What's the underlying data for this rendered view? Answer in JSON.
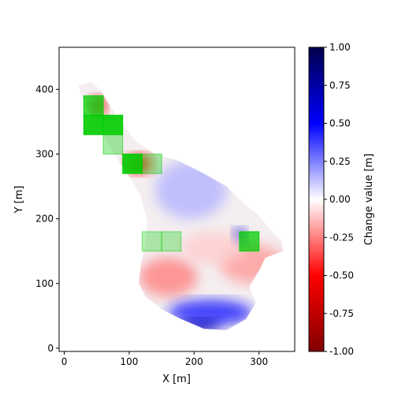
{
  "chart_data": {
    "type": "heatmap",
    "xlabel": "X [m]",
    "ylabel": "Y [m]",
    "xlim": [
      -8,
      355
    ],
    "ylim": [
      -5,
      465
    ],
    "xticks": [
      0,
      100,
      200,
      300
    ],
    "yticks": [
      0,
      100,
      200,
      300,
      400
    ],
    "colorbar": {
      "label": "Change value [m]",
      "range": [
        -1.0,
        1.0
      ],
      "ticks": [
        "-1.00",
        "-0.75",
        "-0.50",
        "-0.25",
        "0.00",
        "0.25",
        "0.50",
        "0.75",
        "1.00"
      ],
      "colormap": "seismic_r",
      "stops": [
        "#800000",
        "#ff0000",
        "#ffffff",
        "#0000ff",
        "#00004d"
      ]
    },
    "surface_outline": [
      [
        22,
        405
      ],
      [
        40,
        412
      ],
      [
        55,
        400
      ],
      [
        70,
        375
      ],
      [
        90,
        345
      ],
      [
        110,
        320
      ],
      [
        140,
        300
      ],
      [
        175,
        290
      ],
      [
        215,
        270
      ],
      [
        250,
        250
      ],
      [
        275,
        225
      ],
      [
        300,
        205
      ],
      [
        320,
        180
      ],
      [
        335,
        165
      ],
      [
        338,
        150
      ],
      [
        310,
        140
      ],
      [
        300,
        120
      ],
      [
        285,
        95
      ],
      [
        295,
        70
      ],
      [
        280,
        45
      ],
      [
        250,
        28
      ],
      [
        215,
        30
      ],
      [
        180,
        45
      ],
      [
        150,
        60
      ],
      [
        125,
        80
      ],
      [
        115,
        100
      ],
      [
        118,
        130
      ],
      [
        125,
        160
      ],
      [
        128,
        195
      ],
      [
        118,
        235
      ],
      [
        100,
        265
      ],
      [
        80,
        295
      ],
      [
        60,
        330
      ],
      [
        40,
        360
      ],
      [
        28,
        385
      ]
    ],
    "change_regions": [
      {
        "x": 115,
        "y": 80,
        "w": 90,
        "h": 60,
        "value": -0.25
      },
      {
        "x": 240,
        "y": 100,
        "w": 100,
        "h": 60,
        "value": -0.2
      },
      {
        "x": 160,
        "y": 35,
        "w": 130,
        "h": 40,
        "value": 0.45
      },
      {
        "x": 180,
        "y": 25,
        "w": 60,
        "h": 20,
        "value": 0.7
      },
      {
        "x": 260,
        "y": 160,
        "w": 20,
        "h": 25,
        "value": 0.6
      },
      {
        "x": 140,
        "y": 200,
        "w": 110,
        "h": 90,
        "value": 0.15
      },
      {
        "x": 95,
        "y": 270,
        "w": 40,
        "h": 30,
        "value": -0.5
      },
      {
        "x": 40,
        "y": 360,
        "w": 25,
        "h": 30,
        "value": -0.6
      },
      {
        "x": 180,
        "y": 130,
        "w": 100,
        "h": 50,
        "value": -0.1
      }
    ],
    "highlight_boxes": [
      {
        "x": 30,
        "y": 360,
        "w": 30,
        "h": 30,
        "opacity": 0.75
      },
      {
        "x": 30,
        "y": 330,
        "w": 30,
        "h": 30,
        "opacity": 0.9
      },
      {
        "x": 60,
        "y": 330,
        "w": 30,
        "h": 30,
        "opacity": 0.9
      },
      {
        "x": 60,
        "y": 300,
        "w": 30,
        "h": 30,
        "opacity": 0.35
      },
      {
        "x": 90,
        "y": 270,
        "w": 30,
        "h": 30,
        "opacity": 0.9
      },
      {
        "x": 120,
        "y": 270,
        "w": 30,
        "h": 30,
        "opacity": 0.35
      },
      {
        "x": 120,
        "y": 150,
        "w": 30,
        "h": 30,
        "opacity": 0.3
      },
      {
        "x": 150,
        "y": 150,
        "w": 30,
        "h": 30,
        "opacity": 0.3
      },
      {
        "x": 270,
        "y": 150,
        "w": 30,
        "h": 30,
        "opacity": 0.75
      }
    ],
    "box_color": "#00cc00",
    "grid": false,
    "legend": "none"
  }
}
